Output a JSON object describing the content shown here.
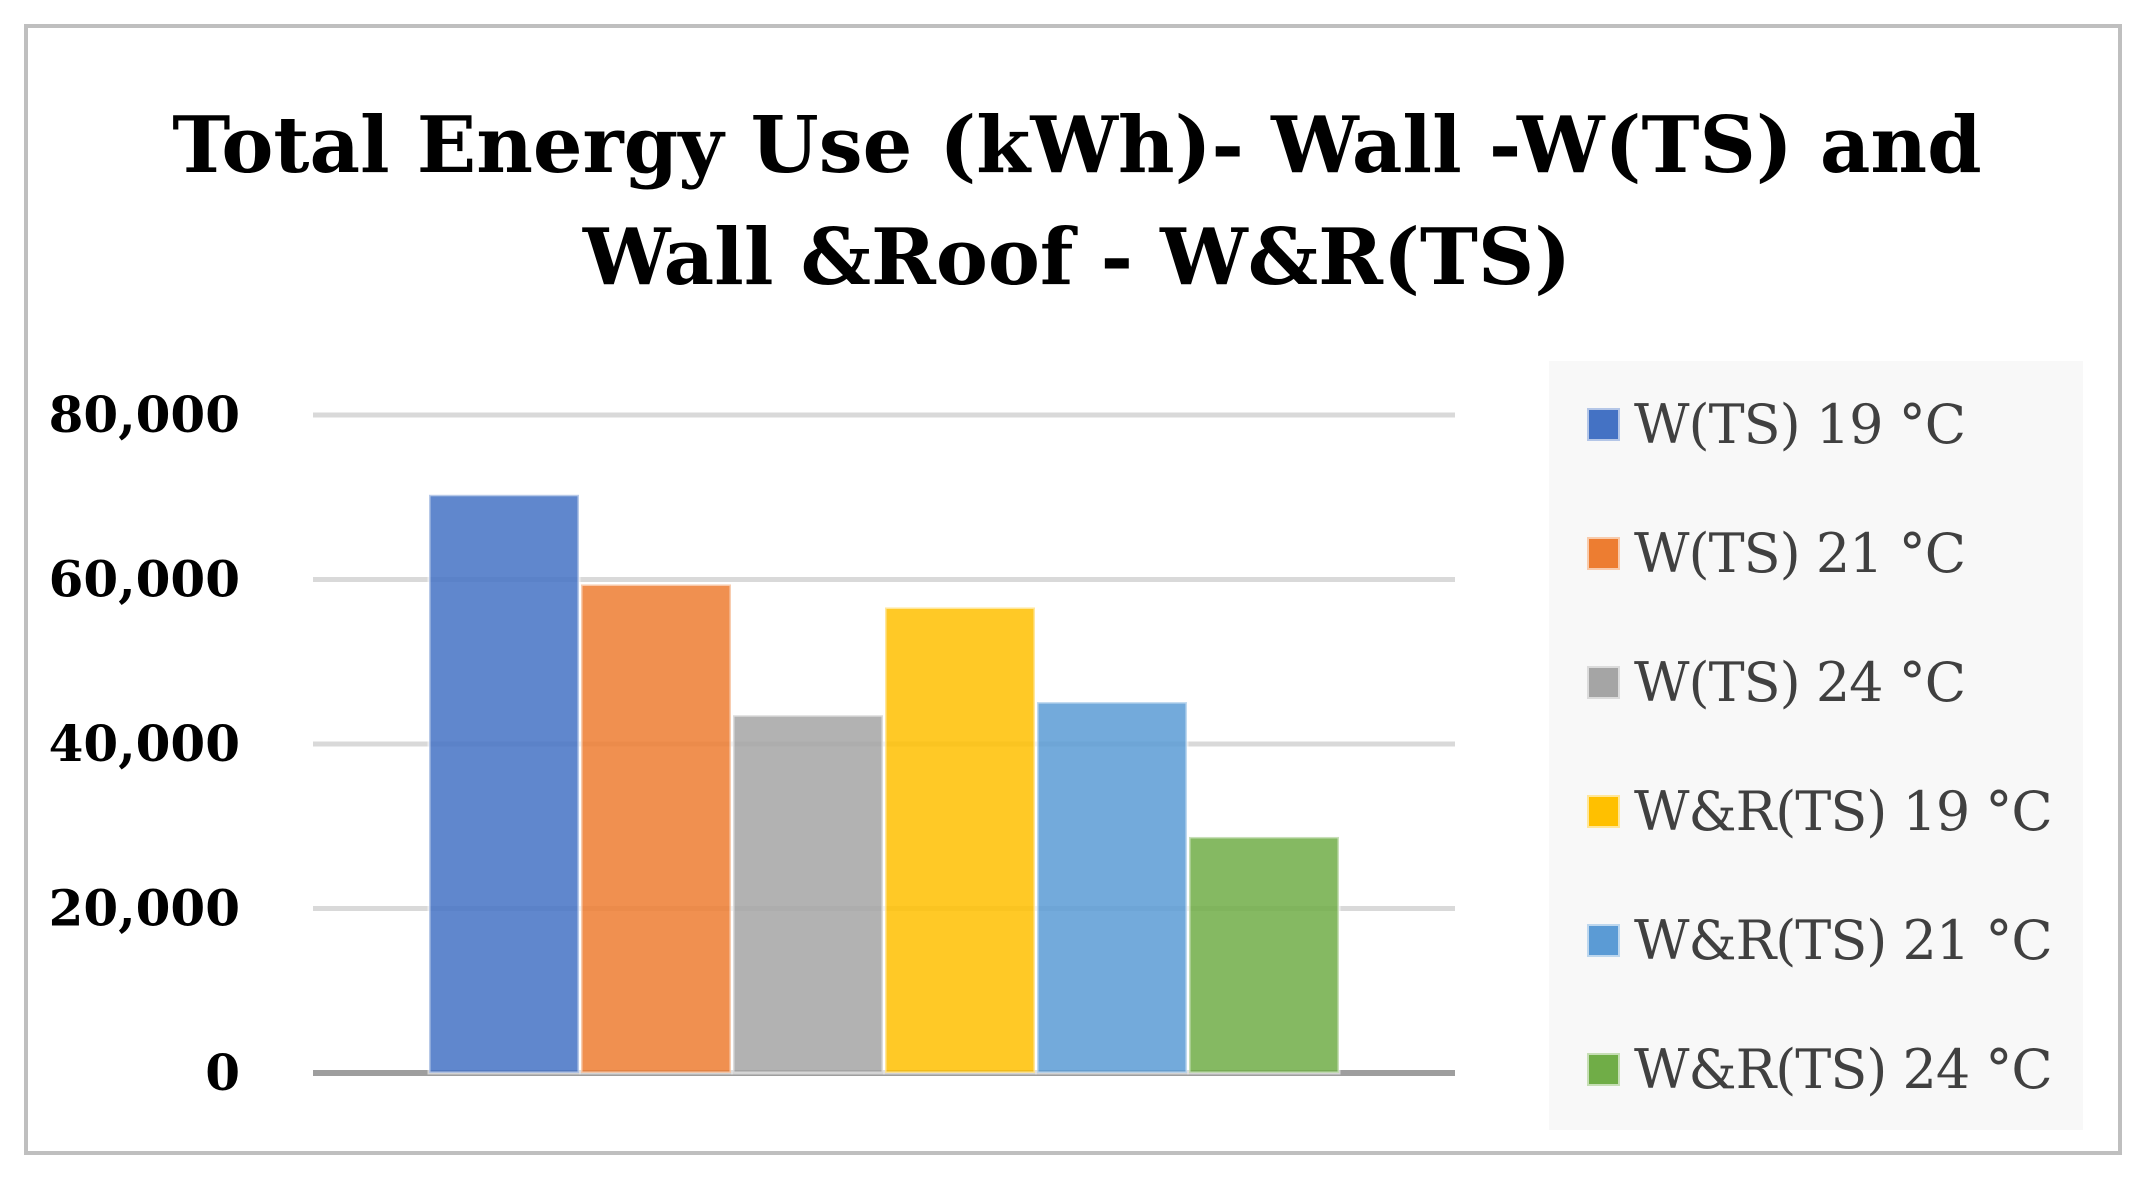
{
  "chart_data": {
    "type": "bar",
    "title_lines": [
      "Total Energy Use (kWh)- Wall -W(TS) and",
      "Wall &Roof - W&R(TS)"
    ],
    "xlabel": "",
    "ylabel": "",
    "ylim": [
      0,
      80000
    ],
    "yticks": [
      0,
      20000,
      40000,
      60000,
      80000
    ],
    "ytick_labels": [
      "0",
      "20,000",
      "40,000",
      "60,000",
      "80,000"
    ],
    "grid": true,
    "legend_position": "right",
    "series": [
      {
        "name": "W(TS) 19 °C",
        "value": 70300,
        "color": "#4472c4"
      },
      {
        "name": "W(TS) 21 °C",
        "value": 59400,
        "color": "#ed7d31"
      },
      {
        "name": "W(TS) 24 °C",
        "value": 43500,
        "color": "#a5a5a5"
      },
      {
        "name": "W&R(TS) 19 °C",
        "value": 56600,
        "color": "#ffc000"
      },
      {
        "name": "W&R(TS) 21 °C",
        "value": 45100,
        "color": "#5b9bd5"
      },
      {
        "name": "W&R(TS) 24 °C",
        "value": 28700,
        "color": "#70ad47"
      }
    ]
  }
}
